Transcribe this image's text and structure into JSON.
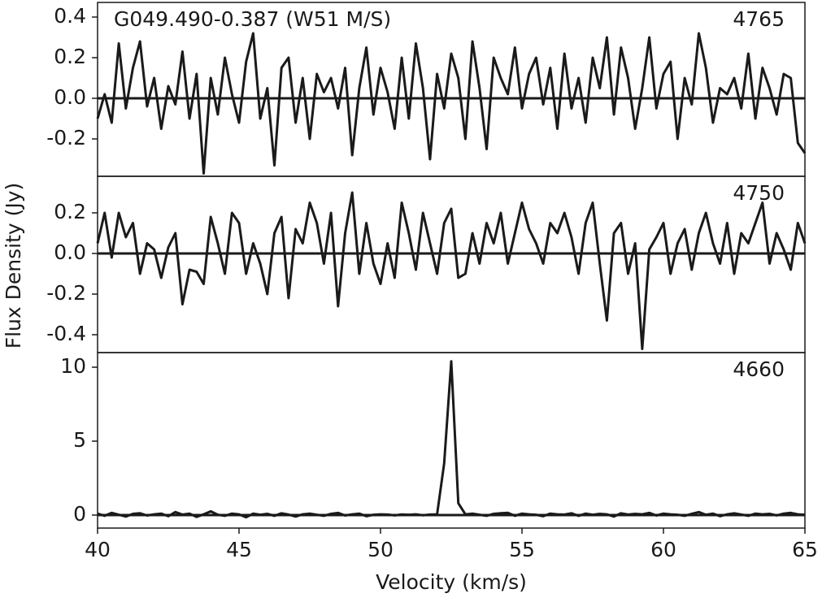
{
  "chart_data": [
    {
      "type": "line",
      "title": "G049.490-0.387 (W51 M/S)",
      "label": "4765",
      "color": "#1a1a1a",
      "xlim": [
        40,
        65
      ],
      "ylim": [
        -0.384,
        0.472
      ],
      "yticks": [
        0.4,
        0.2,
        {
          "value": 0,
          "label": "0.0"
        },
        -0.2
      ],
      "hlines": [
        0
      ],
      "x": [
        40,
        40.25,
        40.5,
        40.75,
        41,
        41.25,
        41.5,
        41.75,
        42,
        42.25,
        42.5,
        42.75,
        43,
        43.25,
        43.5,
        43.75,
        44,
        44.25,
        44.5,
        44.75,
        45,
        45.25,
        45.5,
        45.75,
        46,
        46.25,
        46.5,
        46.75,
        47,
        47.25,
        47.5,
        47.75,
        48,
        48.25,
        48.5,
        48.75,
        49,
        49.25,
        49.5,
        49.75,
        50,
        50.25,
        50.5,
        50.75,
        51,
        51.25,
        51.5,
        51.75,
        52,
        52.25,
        52.5,
        52.75,
        53,
        53.25,
        53.5,
        53.75,
        54,
        54.25,
        54.5,
        54.75,
        55,
        55.25,
        55.5,
        55.75,
        56,
        56.25,
        56.5,
        56.75,
        57,
        57.25,
        57.5,
        57.75,
        58,
        58.25,
        58.5,
        58.75,
        59,
        59.25,
        59.5,
        59.75,
        60,
        60.25,
        60.5,
        60.75,
        61,
        61.25,
        61.5,
        61.75,
        62,
        62.25,
        62.5,
        62.75,
        63,
        63.25,
        63.5,
        63.75,
        64,
        64.25,
        64.5,
        64.75,
        65
      ],
      "values": [
        -0.1,
        0.02,
        -0.12,
        0.27,
        -0.05,
        0.15,
        0.28,
        -0.04,
        0.1,
        -0.15,
        0.06,
        -0.03,
        0.23,
        -0.1,
        0.12,
        -0.37,
        0.1,
        -0.08,
        0.2,
        0.02,
        -0.12,
        0.18,
        0.32,
        -0.1,
        0.05,
        -0.33,
        0.15,
        0.2,
        -0.12,
        0.1,
        -0.2,
        0.12,
        0.03,
        0.1,
        -0.05,
        0.15,
        -0.28,
        0.05,
        0.25,
        -0.08,
        0.15,
        0.03,
        -0.15,
        0.2,
        -0.1,
        0.27,
        0.05,
        -0.3,
        0.12,
        -0.05,
        0.22,
        0.1,
        -0.2,
        0.28,
        0.05,
        -0.25,
        0.2,
        0.1,
        0.02,
        0.25,
        -0.05,
        0.12,
        0.2,
        -0.03,
        0.15,
        -0.15,
        0.22,
        -0.05,
        0.1,
        -0.12,
        0.2,
        0.05,
        0.3,
        -0.08,
        0.25,
        0.1,
        -0.15,
        0.05,
        0.3,
        -0.05,
        0.12,
        0.18,
        -0.2,
        0.1,
        -0.03,
        0.32,
        0.15,
        -0.12,
        0.05,
        0.02,
        0.1,
        -0.05,
        0.22,
        -0.1,
        0.15,
        0.05,
        -0.08,
        0.12,
        0.1,
        -0.22,
        -0.27
      ]
    },
    {
      "type": "line",
      "label": "4750",
      "ylabel": "Flux Density (Jy)",
      "color": "#1a1a1a",
      "xlim": [
        40,
        65
      ],
      "ylim": [
        -0.488,
        0.38
      ],
      "yticks": [
        0.2,
        {
          "value": 0,
          "label": "0.0"
        },
        -0.2,
        -0.4
      ],
      "hlines": [
        0
      ],
      "x": [
        40,
        40.25,
        40.5,
        40.75,
        41,
        41.25,
        41.5,
        41.75,
        42,
        42.25,
        42.5,
        42.75,
        43,
        43.25,
        43.5,
        43.75,
        44,
        44.25,
        44.5,
        44.75,
        45,
        45.25,
        45.5,
        45.75,
        46,
        46.25,
        46.5,
        46.75,
        47,
        47.25,
        47.5,
        47.75,
        48,
        48.25,
        48.5,
        48.75,
        49,
        49.25,
        49.5,
        49.75,
        50,
        50.25,
        50.5,
        50.75,
        51,
        51.25,
        51.5,
        51.75,
        52,
        52.25,
        52.5,
        52.75,
        53,
        53.25,
        53.5,
        53.75,
        54,
        54.25,
        54.5,
        54.75,
        55,
        55.25,
        55.5,
        55.75,
        56,
        56.25,
        56.5,
        56.75,
        57,
        57.25,
        57.5,
        57.75,
        58,
        58.25,
        58.5,
        58.75,
        59,
        59.25,
        59.5,
        59.75,
        60,
        60.25,
        60.5,
        60.75,
        61,
        61.25,
        61.5,
        61.75,
        62,
        62.25,
        62.5,
        62.75,
        63,
        63.25,
        63.5,
        63.75,
        64,
        64.25,
        64.5,
        64.75,
        65
      ],
      "values": [
        0.05,
        0.2,
        -0.02,
        0.2,
        0.08,
        0.15,
        -0.1,
        0.05,
        0.02,
        -0.12,
        0.03,
        0.1,
        -0.25,
        -0.08,
        -0.09,
        -0.15,
        0.18,
        0.05,
        -0.1,
        0.2,
        0.15,
        -0.1,
        0.05,
        -0.05,
        -0.2,
        0.1,
        0.18,
        -0.22,
        0.12,
        0.05,
        0.25,
        0.15,
        -0.05,
        0.2,
        -0.26,
        0.1,
        0.3,
        -0.1,
        0.15,
        -0.05,
        -0.15,
        0.05,
        -0.12,
        0.25,
        0.1,
        -0.08,
        0.2,
        0.05,
        -0.1,
        0.15,
        0.22,
        -0.12,
        -0.1,
        0.1,
        -0.05,
        0.15,
        0.05,
        0.2,
        -0.05,
        0.1,
        0.25,
        0.12,
        0.05,
        -0.05,
        0.15,
        0.1,
        0.2,
        0.08,
        -0.1,
        0.15,
        0.25,
        -0.05,
        -0.33,
        0.1,
        0.15,
        -0.1,
        0.05,
        -0.47,
        0.02,
        0.08,
        0.15,
        -0.1,
        0.05,
        0.12,
        -0.08,
        0.1,
        0.2,
        0.05,
        -0.05,
        0.15,
        -0.1,
        0.1,
        0.05,
        0.15,
        0.25,
        -0.05,
        0.1,
        0.02,
        -0.08,
        0.15,
        0.05
      ]
    },
    {
      "type": "line",
      "label": "4660",
      "xlabel": "Velocity (km/s)",
      "color": "#1a1a1a",
      "xlim": [
        40,
        65
      ],
      "xticks": [
        40,
        45,
        50,
        55,
        60,
        65
      ],
      "ylim": [
        -0.88,
        10.99
      ],
      "yticks": [
        10,
        5,
        0
      ],
      "hlines": [
        0
      ],
      "x": [
        40,
        40.25,
        40.5,
        40.75,
        41,
        41.25,
        41.5,
        41.75,
        42,
        42.25,
        42.5,
        42.75,
        43,
        43.25,
        43.5,
        43.75,
        44,
        44.25,
        44.5,
        44.75,
        45,
        45.25,
        45.5,
        45.75,
        46,
        46.25,
        46.5,
        46.75,
        47,
        47.25,
        47.5,
        47.75,
        48,
        48.25,
        48.5,
        48.75,
        49,
        49.25,
        49.5,
        49.75,
        50,
        50.25,
        50.5,
        50.75,
        51,
        51.25,
        51.5,
        51.75,
        52,
        52.25,
        52.5,
        52.75,
        53,
        53.25,
        53.5,
        53.75,
        54,
        54.25,
        54.5,
        54.75,
        55,
        55.25,
        55.5,
        55.75,
        56,
        56.25,
        56.5,
        56.75,
        57,
        57.25,
        57.5,
        57.75,
        58,
        58.25,
        58.5,
        58.75,
        59,
        59.25,
        59.5,
        59.75,
        60,
        60.25,
        60.5,
        60.75,
        61,
        61.25,
        61.5,
        61.75,
        62,
        62.25,
        62.5,
        62.75,
        63,
        63.25,
        63.5,
        63.75,
        64,
        64.25,
        64.5,
        64.75,
        65
      ],
      "values": [
        0.1,
        -0.05,
        0.15,
        0.02,
        -0.1,
        0.08,
        0.12,
        -0.03,
        0.05,
        0.1,
        -0.08,
        0.2,
        0.03,
        0.1,
        -0.12,
        0.05,
        0.25,
        0.02,
        -0.05,
        0.1,
        0.05,
        -0.15,
        0.1,
        0.02,
        0.08,
        -0.05,
        0.12,
        0.03,
        -0.1,
        0.05,
        0.1,
        0.02,
        -0.05,
        0.08,
        0.15,
        -0.03,
        0.05,
        0.1,
        -0.08,
        0.02,
        0.05,
        0.03,
        -0.02,
        0.04,
        0.02,
        0.05,
        -0.01,
        0.03,
        0.05,
        3.5,
        10.4,
        0.8,
        0.05,
        0.1,
        0.02,
        -0.05,
        0.08,
        0.12,
        0.15,
        -0.05,
        0.1,
        0.05,
        0.02,
        -0.08,
        0.1,
        0.05,
        0.03,
        0.12,
        -0.05,
        0.1,
        0.02,
        0.08,
        0.05,
        -0.1,
        0.12,
        0.03,
        0.08,
        0.05,
        0.15,
        -0.03,
        0.1,
        0.05,
        0.02,
        -0.05,
        0.08,
        0.2,
        0.02,
        0.1,
        -0.08,
        0.05,
        0.12,
        0.03,
        -0.05,
        0.1,
        0.05,
        0.08,
        -0.02,
        0.1,
        0.15,
        0.05,
        0.02
      ]
    }
  ]
}
